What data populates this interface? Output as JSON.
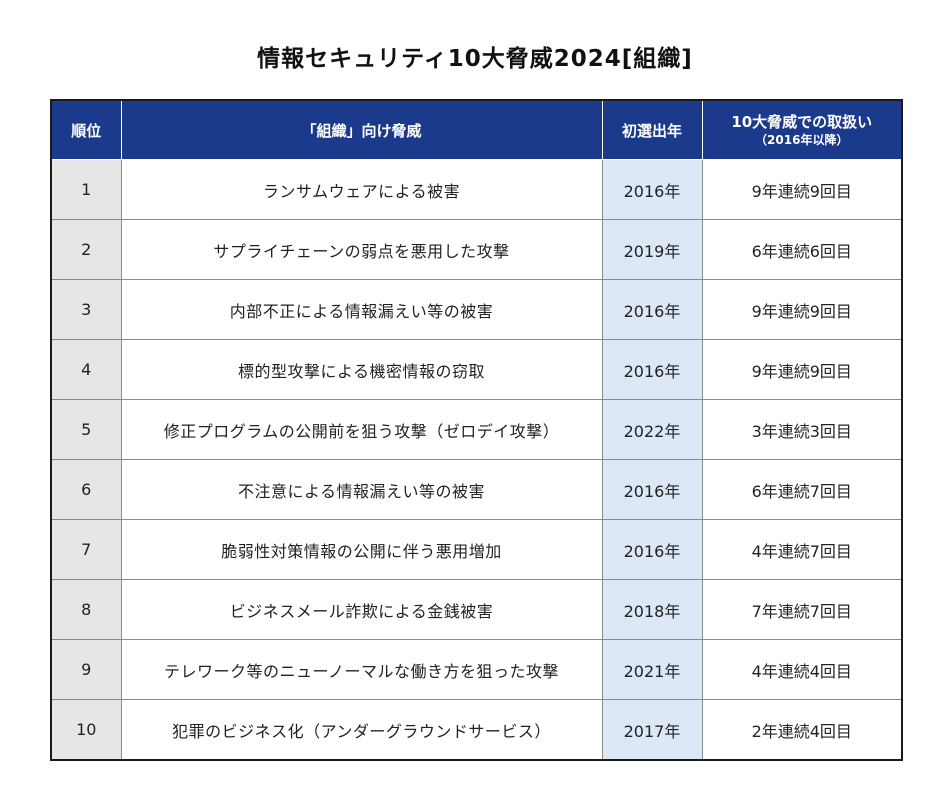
{
  "title": "情報セキュリティ10大脅威2024[組織]",
  "headers": {
    "rank": "順位",
    "threat": "「組織」向け脅威",
    "first_year": "初選出年",
    "history_main": "10大脅威での取扱い",
    "history_sub": "（2016年以降）"
  },
  "rows": [
    {
      "rank": "1",
      "threat": "ランサムウェアによる被害",
      "first_year": "2016年",
      "history": "9年連続9回目"
    },
    {
      "rank": "2",
      "threat": "サプライチェーンの弱点を悪用した攻撃",
      "first_year": "2019年",
      "history": "6年連続6回目"
    },
    {
      "rank": "3",
      "threat": "内部不正による情報漏えい等の被害",
      "first_year": "2016年",
      "history": "9年連続9回目"
    },
    {
      "rank": "4",
      "threat": "標的型攻撃による機密情報の窃取",
      "first_year": "2016年",
      "history": "9年連続9回目"
    },
    {
      "rank": "5",
      "threat": "修正プログラムの公開前を狙う攻撃（ゼロデイ攻撃）",
      "first_year": "2022年",
      "history": "3年連続3回目"
    },
    {
      "rank": "6",
      "threat": "不注意による情報漏えい等の被害",
      "first_year": "2016年",
      "history": "6年連続7回目"
    },
    {
      "rank": "7",
      "threat": "脆弱性対策情報の公開に伴う悪用増加",
      "first_year": "2016年",
      "history": "4年連続7回目"
    },
    {
      "rank": "8",
      "threat": "ビジネスメール詐欺による金銭被害",
      "first_year": "2018年",
      "history": "7年連続7回目"
    },
    {
      "rank": "9",
      "threat": "テレワーク等のニューノーマルな働き方を狙った攻撃",
      "first_year": "2021年",
      "history": "4年連続4回目"
    },
    {
      "rank": "10",
      "threat": "犯罪のビジネス化（アンダーグラウンドサービス）",
      "first_year": "2017年",
      "history": "2年連続4回目"
    }
  ]
}
